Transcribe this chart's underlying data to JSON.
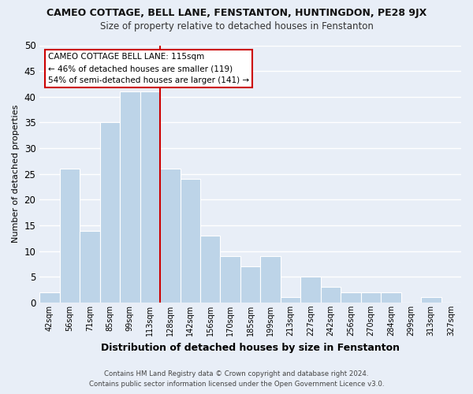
{
  "title": "CAMEO COTTAGE, BELL LANE, FENSTANTON, HUNTINGDON, PE28 9JX",
  "subtitle": "Size of property relative to detached houses in Fenstanton",
  "xlabel": "Distribution of detached houses by size in Fenstanton",
  "ylabel": "Number of detached properties",
  "bin_labels": [
    "42sqm",
    "56sqm",
    "71sqm",
    "85sqm",
    "99sqm",
    "113sqm",
    "128sqm",
    "142sqm",
    "156sqm",
    "170sqm",
    "185sqm",
    "199sqm",
    "213sqm",
    "227sqm",
    "242sqm",
    "256sqm",
    "270sqm",
    "284sqm",
    "299sqm",
    "313sqm",
    "327sqm"
  ],
  "bar_values": [
    2,
    26,
    14,
    35,
    41,
    41,
    26,
    24,
    13,
    9,
    7,
    9,
    1,
    5,
    3,
    2,
    2,
    2,
    0,
    1,
    0
  ],
  "bar_color": "#bdd4e8",
  "bar_edge_color": "#ffffff",
  "highlight_line_color": "#cc0000",
  "ylim": [
    0,
    50
  ],
  "yticks": [
    0,
    5,
    10,
    15,
    20,
    25,
    30,
    35,
    40,
    45,
    50
  ],
  "annotation_title": "CAMEO COTTAGE BELL LANE: 115sqm",
  "annotation_line1": "← 46% of detached houses are smaller (119)",
  "annotation_line2": "54% of semi-detached houses are larger (141) →",
  "annotation_box_color": "#ffffff",
  "annotation_box_edge": "#cc0000",
  "footer1": "Contains HM Land Registry data © Crown copyright and database right 2024.",
  "footer2": "Contains public sector information licensed under the Open Government Licence v3.0.",
  "background_color": "#e8eef7",
  "grid_color": "#ffffff"
}
